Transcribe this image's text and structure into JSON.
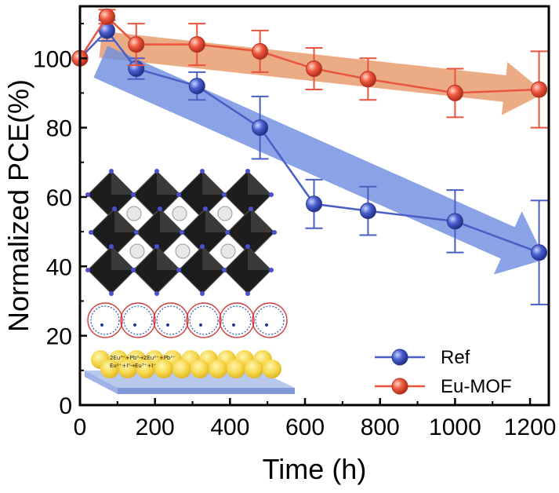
{
  "chart_data": {
    "type": "line",
    "xlabel": "Time (h)",
    "ylabel": "Normalized PCE(%)",
    "xlim": [
      0,
      1250
    ],
    "ylim": [
      0,
      115
    ],
    "xticks": [
      0,
      200,
      400,
      600,
      800,
      1000,
      1200
    ],
    "yticks": [
      0,
      20,
      40,
      60,
      80,
      100
    ],
    "xtick_labels": [
      "0",
      "200",
      "400",
      "600",
      "800",
      "1000",
      "1200"
    ],
    "ytick_labels": [
      "0",
      "20",
      "40",
      "60",
      "80",
      "100"
    ],
    "legend_position": "bottom-right",
    "series": [
      {
        "name": "Ref",
        "color": "#3b4fb5",
        "line_color": "#4a5fc4",
        "x": [
          0,
          72,
          150,
          312,
          480,
          624,
          768,
          1000,
          1224
        ],
        "y": [
          100,
          108,
          97,
          92,
          80,
          58,
          56,
          53,
          44
        ],
        "err": [
          0,
          3,
          3,
          4,
          9,
          7,
          7,
          9,
          15
        ]
      },
      {
        "name": "Eu-MOF",
        "color": "#e0503a",
        "line_color": "#e8543c",
        "x": [
          0,
          72,
          150,
          312,
          480,
          624,
          768,
          1000,
          1224
        ],
        "y": [
          100,
          112,
          104,
          104,
          102,
          97,
          94,
          90,
          91
        ],
        "err": [
          0,
          2,
          6,
          6,
          6,
          6,
          6,
          7,
          11
        ]
      }
    ],
    "trend_arrows": [
      {
        "series": "Eu-MOF",
        "color": "#e79a6a",
        "from": [
          55,
          104
        ],
        "to": [
          1240,
          90
        ]
      },
      {
        "series": "Ref",
        "color": "#6f8fe0",
        "from": [
          55,
          99
        ],
        "to": [
          1240,
          42
        ]
      }
    ],
    "inset_equations": [
      "2Eu³⁺+Pb⁰→2Eu²⁺+Pb²⁺",
      "Eu²⁺+I⁰→Eu³⁺+I⁻"
    ]
  }
}
